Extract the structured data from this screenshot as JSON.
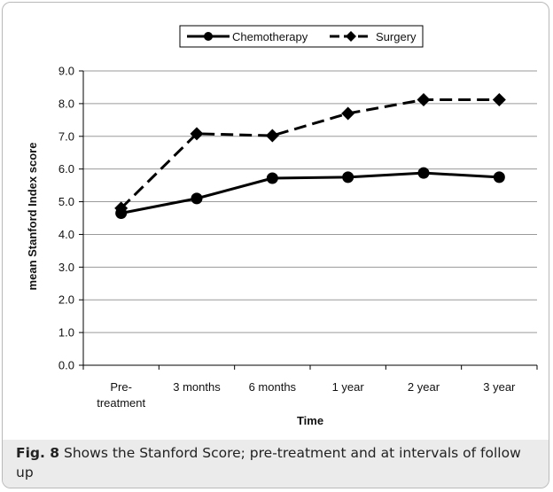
{
  "chart_data": {
    "type": "line",
    "categories": [
      "Pre-treatment",
      "3 months",
      "6 months",
      "1 year",
      "2 year",
      "3 year"
    ],
    "category_labels": [
      [
        "Pre-",
        "treatment"
      ],
      [
        "3 months"
      ],
      [
        "6 months"
      ],
      [
        "1 year"
      ],
      [
        "2 year"
      ],
      [
        "3 year"
      ]
    ],
    "series": [
      {
        "name": "Chemotherapy",
        "values": [
          4.65,
          5.1,
          5.72,
          5.75,
          5.88,
          5.75
        ],
        "marker": "circle",
        "line_style": "solid",
        "color": "#000000"
      },
      {
        "name": "Surgery",
        "values": [
          4.8,
          7.08,
          7.02,
          7.7,
          8.12,
          8.12
        ],
        "marker": "diamond",
        "line_style": "dashed",
        "color": "#000000"
      }
    ],
    "xlabel": "Time",
    "ylabel": "mean Stanford Index score",
    "ylim": [
      0,
      9
    ],
    "yticks": [
      "0.0",
      "1.0",
      "2.0",
      "3.0",
      "4.0",
      "5.0",
      "6.0",
      "7.0",
      "8.0",
      "9.0"
    ],
    "grid": "horizontal",
    "legend_position": "top"
  },
  "caption": {
    "label": "Fig. 8",
    "text": " Shows the Stanford Score; pre-treatment and at intervals of follow up"
  }
}
